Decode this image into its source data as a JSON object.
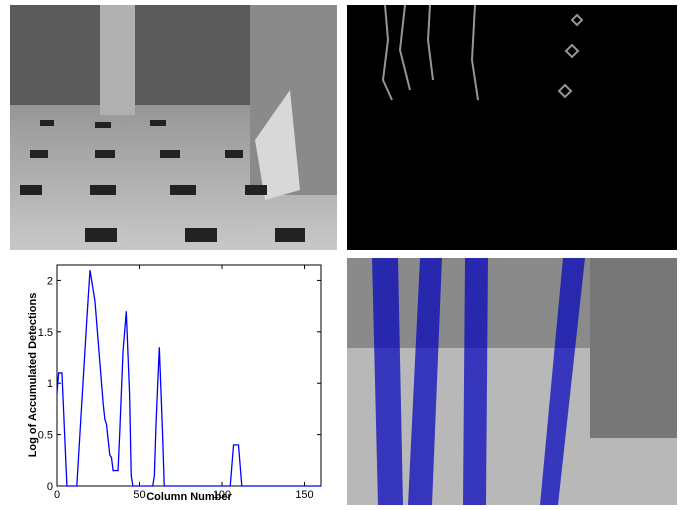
{
  "chart_data": {
    "type": "line",
    "x_label": "Column Number",
    "y_label": "Log of Accumulated Detections",
    "x": [
      0,
      1,
      3,
      6,
      12,
      18,
      20,
      23,
      26,
      28,
      29,
      30,
      31,
      32,
      33,
      34,
      37,
      38,
      40,
      42,
      44,
      45,
      46,
      58,
      59,
      60,
      62,
      64,
      65,
      105,
      107,
      110,
      112,
      160
    ],
    "series": [
      {
        "color": "#0000ff",
        "values": [
          0.9,
          1.1,
          1.1,
          0,
          0,
          1.6,
          2.1,
          1.8,
          1.2,
          0.8,
          0.65,
          0.6,
          0.45,
          0.3,
          0.28,
          0.15,
          0.15,
          0.5,
          1.3,
          1.7,
          0.9,
          0.1,
          0,
          0,
          0.1,
          0.6,
          1.35,
          0.5,
          0,
          0,
          0.4,
          0.4,
          0,
          0
        ]
      }
    ],
    "xlim": [
      0,
      160
    ],
    "xticks": [
      0,
      50,
      100,
      150
    ],
    "ylim": [
      0,
      2.15
    ],
    "yticks": [
      0,
      0.5,
      1,
      1.5,
      2
    ]
  }
}
